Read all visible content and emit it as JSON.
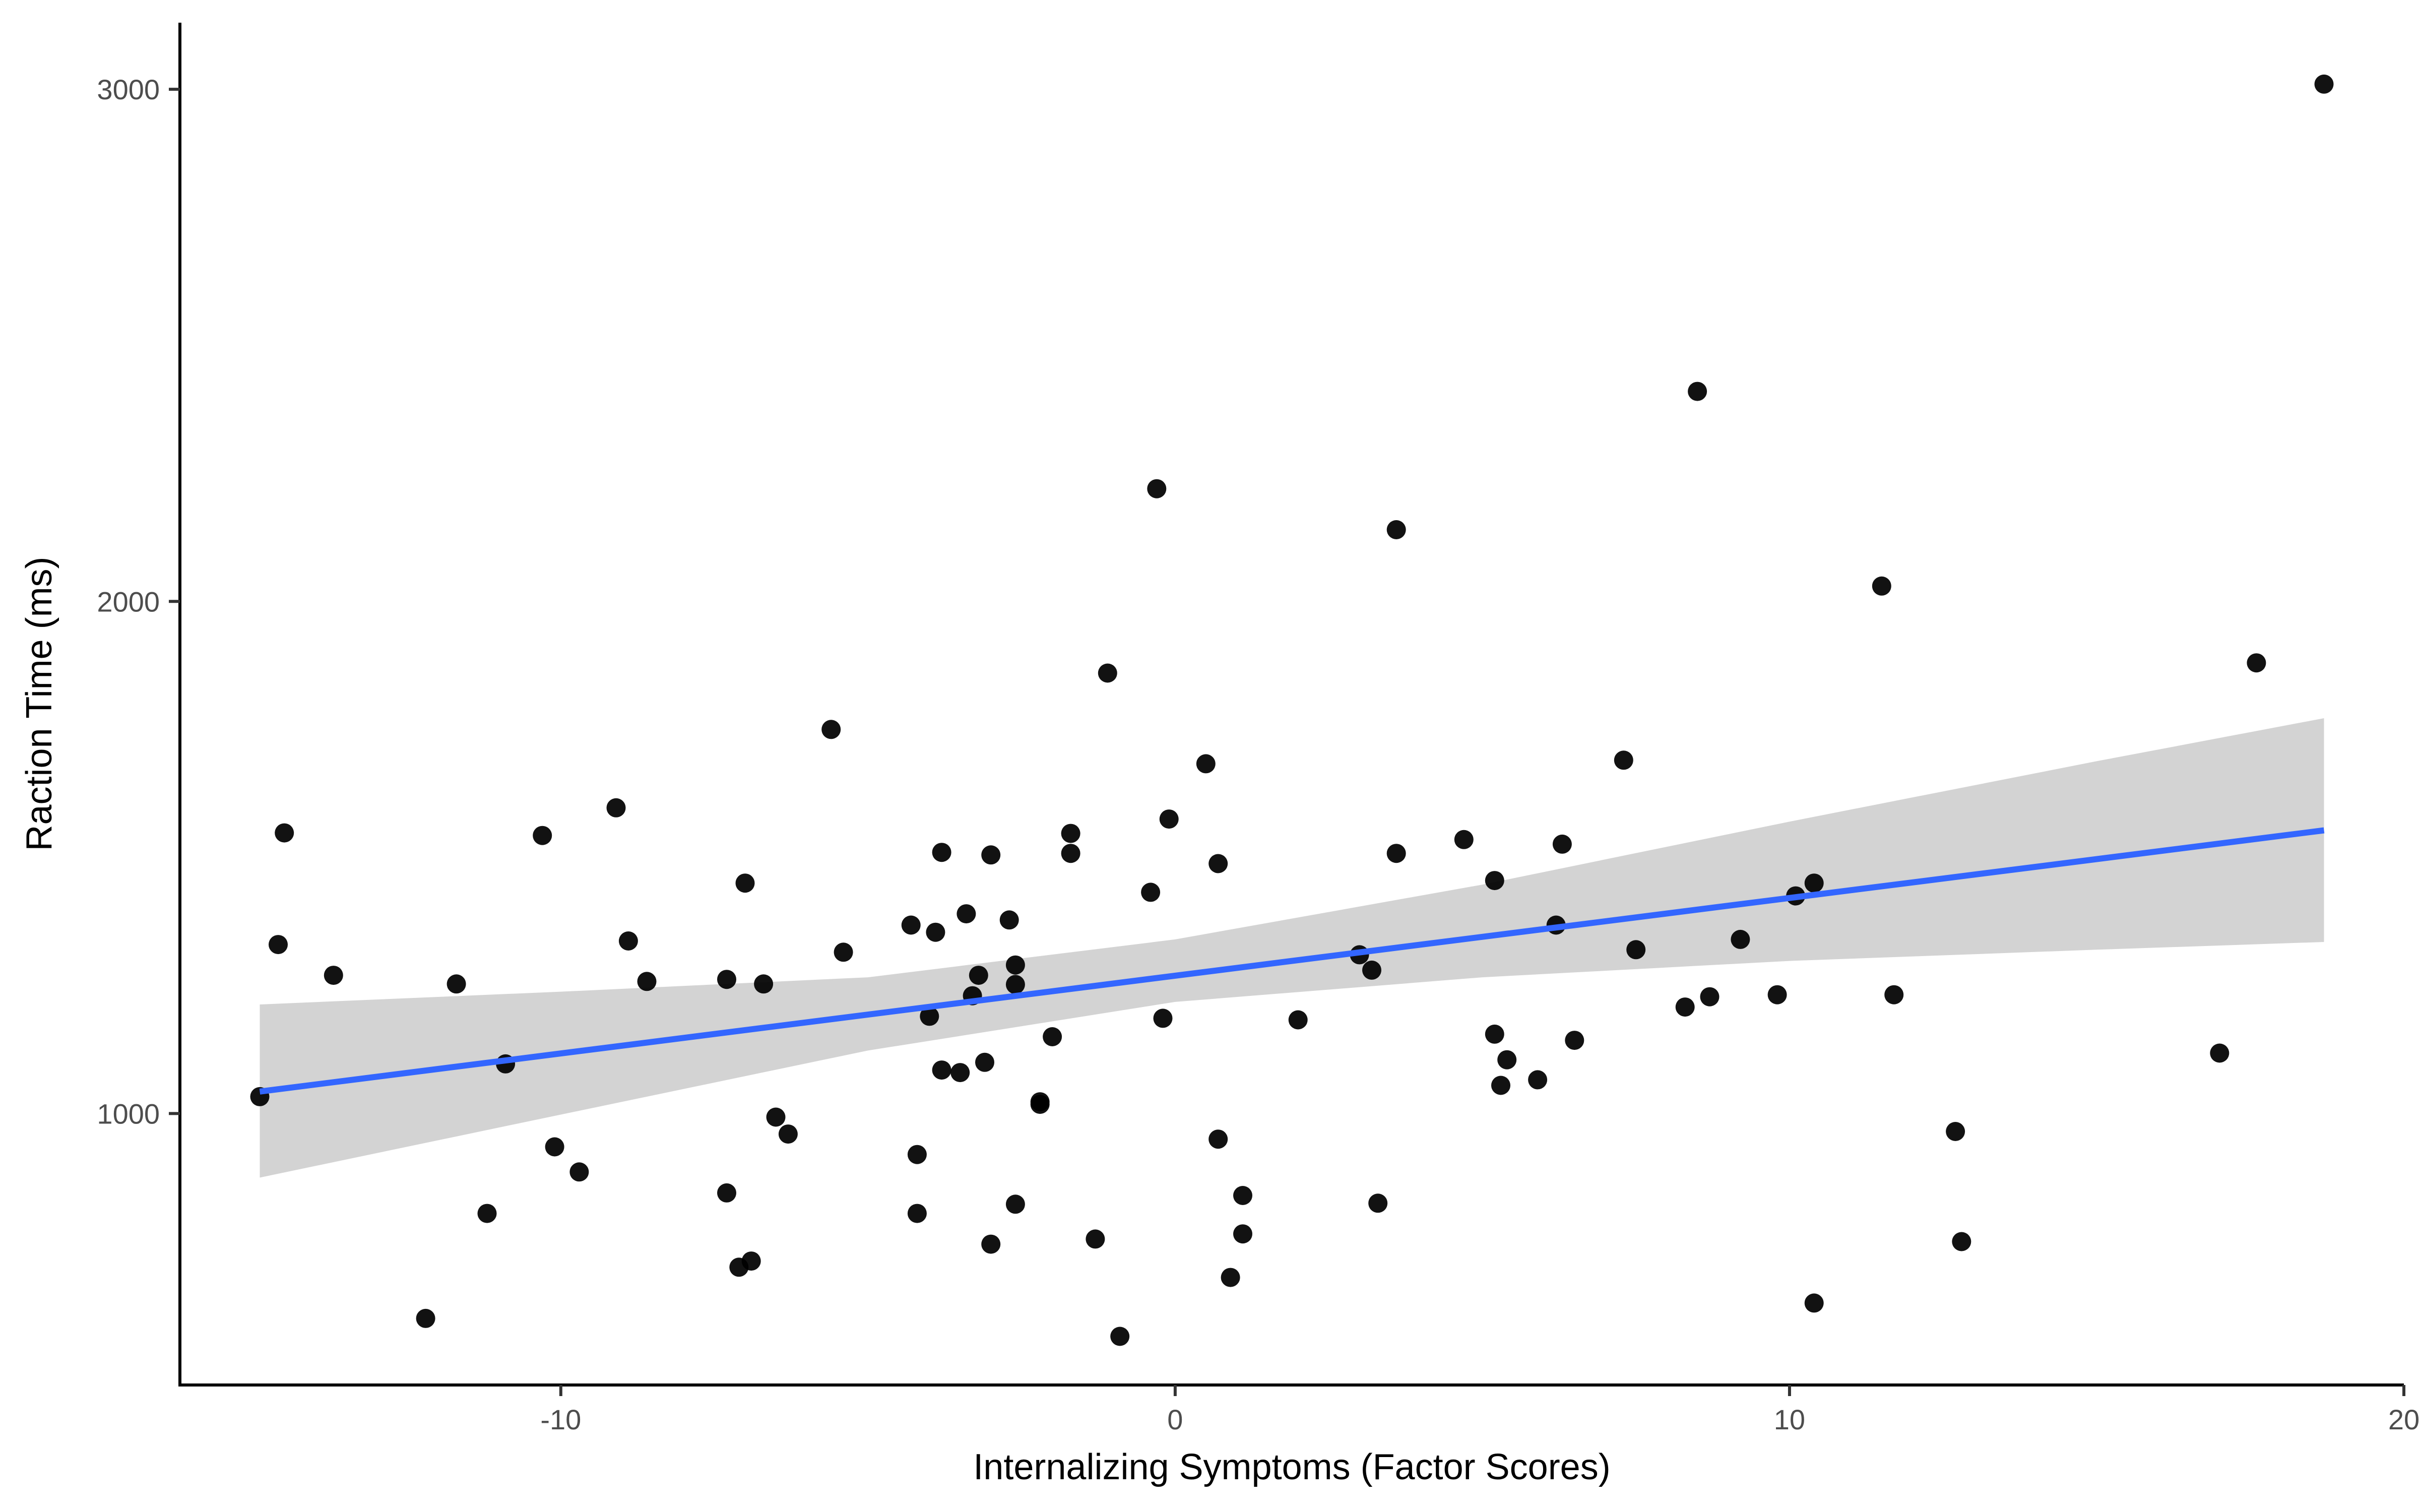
{
  "chart_data": {
    "type": "scatter",
    "title": "",
    "xlabel": "Internalizing Symptoms (Factor Scores)",
    "ylabel": "Raction Time (ms)",
    "xlim": [
      -16.2,
      20.0
    ],
    "ylim": [
      470,
      3130
    ],
    "x_ticks": [
      -10,
      0,
      10,
      20
    ],
    "x_tick_labels": [
      "-10",
      "0",
      "10",
      "20"
    ],
    "y_ticks": [
      1000,
      2000,
      3000
    ],
    "y_tick_labels": [
      "1000",
      "2000",
      "3000"
    ],
    "grid": false,
    "legend": "none",
    "colors": {
      "points": "#000000",
      "fit_line": "#3366FF",
      "ribbon": "#D3D3D3",
      "axis": "#000000",
      "tick_text": "#4d4d4d"
    },
    "points": [
      {
        "x": -14.9,
        "y": 1033
      },
      {
        "x": -14.6,
        "y": 1330
      },
      {
        "x": -14.5,
        "y": 1548
      },
      {
        "x": -13.7,
        "y": 1270
      },
      {
        "x": -12.2,
        "y": 600
      },
      {
        "x": -11.7,
        "y": 1253
      },
      {
        "x": -11.2,
        "y": 805
      },
      {
        "x": -10.9,
        "y": 1097
      },
      {
        "x": -10.3,
        "y": 1543
      },
      {
        "x": -10.1,
        "y": 935
      },
      {
        "x": -9.7,
        "y": 886
      },
      {
        "x": -9.1,
        "y": 1597
      },
      {
        "x": -8.9,
        "y": 1337
      },
      {
        "x": -8.6,
        "y": 1258
      },
      {
        "x": -7.3,
        "y": 1262
      },
      {
        "x": -7.3,
        "y": 845
      },
      {
        "x": -7.1,
        "y": 700
      },
      {
        "x": -7.0,
        "y": 1450
      },
      {
        "x": -6.9,
        "y": 712
      },
      {
        "x": -6.7,
        "y": 1253
      },
      {
        "x": -6.5,
        "y": 993
      },
      {
        "x": -6.3,
        "y": 960
      },
      {
        "x": -5.6,
        "y": 1750
      },
      {
        "x": -5.4,
        "y": 1315
      },
      {
        "x": -4.3,
        "y": 1368
      },
      {
        "x": -4.2,
        "y": 920
      },
      {
        "x": -4.2,
        "y": 805
      },
      {
        "x": -4.0,
        "y": 1190
      },
      {
        "x": -3.9,
        "y": 1354
      },
      {
        "x": -3.8,
        "y": 1510
      },
      {
        "x": -3.8,
        "y": 1085
      },
      {
        "x": -3.5,
        "y": 1080
      },
      {
        "x": -3.4,
        "y": 1390
      },
      {
        "x": -3.3,
        "y": 1230
      },
      {
        "x": -3.2,
        "y": 1270
      },
      {
        "x": -3.1,
        "y": 1100
      },
      {
        "x": -3.0,
        "y": 1505
      },
      {
        "x": -3.0,
        "y": 745
      },
      {
        "x": -2.7,
        "y": 1378
      },
      {
        "x": -2.6,
        "y": 1252
      },
      {
        "x": -2.6,
        "y": 1290
      },
      {
        "x": -2.6,
        "y": 823
      },
      {
        "x": -2.2,
        "y": 1018
      },
      {
        "x": -2.2,
        "y": 1023
      },
      {
        "x": -2.0,
        "y": 1150
      },
      {
        "x": -1.7,
        "y": 1547
      },
      {
        "x": -1.7,
        "y": 1508
      },
      {
        "x": -1.3,
        "y": 755
      },
      {
        "x": -1.1,
        "y": 1860
      },
      {
        "x": -0.9,
        "y": 565
      },
      {
        "x": -0.4,
        "y": 1432
      },
      {
        "x": -0.3,
        "y": 2220
      },
      {
        "x": -0.2,
        "y": 1186
      },
      {
        "x": -0.1,
        "y": 1575
      },
      {
        "x": 0.5,
        "y": 1683
      },
      {
        "x": 0.7,
        "y": 1488
      },
      {
        "x": 0.7,
        "y": 950
      },
      {
        "x": 0.9,
        "y": 680
      },
      {
        "x": 1.1,
        "y": 840
      },
      {
        "x": 1.1,
        "y": 765
      },
      {
        "x": 2.0,
        "y": 1183
      },
      {
        "x": 3.0,
        "y": 1310
      },
      {
        "x": 3.2,
        "y": 1280
      },
      {
        "x": 3.3,
        "y": 825
      },
      {
        "x": 3.6,
        "y": 1508
      },
      {
        "x": 3.6,
        "y": 2140
      },
      {
        "x": 4.7,
        "y": 1535
      },
      {
        "x": 5.2,
        "y": 1455
      },
      {
        "x": 5.2,
        "y": 1155
      },
      {
        "x": 5.3,
        "y": 1055
      },
      {
        "x": 5.4,
        "y": 1105
      },
      {
        "x": 5.9,
        "y": 1066
      },
      {
        "x": 6.2,
        "y": 1368
      },
      {
        "x": 6.3,
        "y": 1526
      },
      {
        "x": 6.5,
        "y": 1143
      },
      {
        "x": 7.3,
        "y": 1690
      },
      {
        "x": 7.5,
        "y": 1320
      },
      {
        "x": 8.3,
        "y": 1208
      },
      {
        "x": 8.5,
        "y": 2410
      },
      {
        "x": 8.7,
        "y": 1228
      },
      {
        "x": 9.2,
        "y": 1340
      },
      {
        "x": 9.8,
        "y": 1232
      },
      {
        "x": 10.1,
        "y": 1425
      },
      {
        "x": 10.4,
        "y": 1450
      },
      {
        "x": 10.4,
        "y": 630
      },
      {
        "x": 11.5,
        "y": 2030
      },
      {
        "x": 11.7,
        "y": 1232
      },
      {
        "x": 12.7,
        "y": 965
      },
      {
        "x": 12.8,
        "y": 750
      },
      {
        "x": 17.0,
        "y": 1118
      },
      {
        "x": 17.6,
        "y": 1880
      },
      {
        "x": 18.7,
        "y": 3010
      }
    ],
    "fit": {
      "type": "linear",
      "x": [
        -14.9,
        18.7
      ],
      "y": [
        1043,
        1553
      ],
      "ci_lower": [
        {
          "x": -14.9,
          "y": 875
        },
        {
          "x": -10,
          "y": 998
        },
        {
          "x": -5,
          "y": 1123
        },
        {
          "x": 0,
          "y": 1218
        },
        {
          "x": 5,
          "y": 1266
        },
        {
          "x": 10,
          "y": 1298
        },
        {
          "x": 15,
          "y": 1320
        },
        {
          "x": 18.7,
          "y": 1335
        }
      ],
      "ci_upper": [
        {
          "x": -14.9,
          "y": 1213
        },
        {
          "x": -10,
          "y": 1238
        },
        {
          "x": -5,
          "y": 1266
        },
        {
          "x": 0,
          "y": 1340
        },
        {
          "x": 5,
          "y": 1447
        },
        {
          "x": 10,
          "y": 1570
        },
        {
          "x": 15,
          "y": 1688
        },
        {
          "x": 18.7,
          "y": 1772
        }
      ]
    }
  }
}
